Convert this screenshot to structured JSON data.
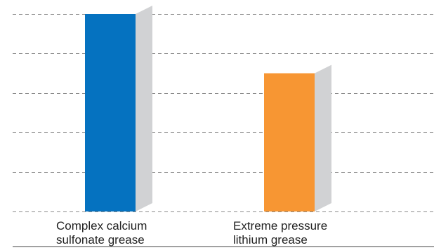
{
  "chart_data": {
    "type": "bar",
    "categories": [
      [
        "Complex calcium",
        "sulfonate grease"
      ],
      [
        "Extreme pressure",
        "lithium grease"
      ]
    ],
    "values": [
      5,
      3.5
    ],
    "ylim": [
      0,
      5
    ],
    "grid": true,
    "style": "3d-shadow",
    "colors": {
      "bars": [
        "#0572c0",
        "#f79633"
      ],
      "shadow": "#d1d2d4",
      "grid": "#8a8a8a",
      "baseline": "#444444"
    }
  }
}
